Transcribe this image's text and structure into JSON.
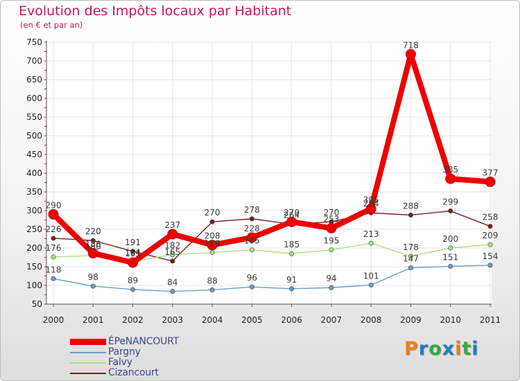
{
  "page": {
    "title": "Evolution des Impôts locaux par Habitant",
    "subtitle": "(en € et par an)"
  },
  "chart_data": {
    "type": "line",
    "title": "Evolution des Impôts locaux par Habitant",
    "subtitle": "(en € et par an)",
    "xlabel": "",
    "ylabel": "",
    "x": [
      "2000",
      "2001",
      "2002",
      "2003",
      "2004",
      "2005",
      "2006",
      "2007",
      "2008",
      "2009",
      "2010",
      "2011"
    ],
    "ylim": [
      50,
      750
    ],
    "yticks": [
      50,
      100,
      150,
      200,
      250,
      300,
      350,
      400,
      450,
      500,
      550,
      600,
      650,
      700,
      750
    ],
    "grid": true,
    "legend_position": "bottom-left",
    "series": [
      {
        "name": "ÉPeNANCOURT",
        "color": "#ee0000",
        "values": [
          290,
          186,
          161,
          237,
          208,
          228,
          270,
          253,
          305,
          718,
          385,
          377
        ],
        "labels": [
          "290",
          "186",
          "161",
          "237",
          "208",
          "228",
          "270",
          "253",
          "305",
          "718",
          "385",
          "377"
        ]
      },
      {
        "name": "Pargny",
        "color": "#6a9cc9",
        "values": [
          118,
          98,
          89,
          84,
          88,
          96,
          91,
          94,
          101,
          147,
          151,
          154
        ],
        "labels": [
          "118",
          "98",
          "89",
          "84",
          "88",
          "96",
          "91",
          "94",
          "101",
          "147",
          "151",
          "154"
        ]
      },
      {
        "name": "Falvy",
        "color": "#a9e27e",
        "values": [
          176,
          180,
          164,
          182,
          188,
          195,
          185,
          195,
          213,
          178,
          200,
          209
        ],
        "labels": [
          "176",
          "180",
          "164",
          "182",
          "188",
          "195",
          "185",
          "195",
          "213",
          "178",
          "200",
          "209"
        ]
      },
      {
        "name": "Cizancourt",
        "color": "#7a1f1f",
        "values": [
          226,
          220,
          191,
          165,
          270,
          278,
          264,
          270,
          294,
          288,
          299,
          258
        ],
        "labels": [
          "226",
          "220",
          "191",
          "165",
          "270",
          "278",
          "264",
          "270",
          "294",
          "288",
          "299",
          "258"
        ]
      }
    ]
  },
  "legend": {
    "items": [
      {
        "label": "ÉPeNANCOURT",
        "color": "#ee0000"
      },
      {
        "label": "Pargny",
        "color": "#6a9cc9"
      },
      {
        "label": "Falvy",
        "color": "#a9e27e"
      },
      {
        "label": "Cizancourt",
        "color": "#7a1f1f"
      }
    ]
  },
  "logo": {
    "letters": [
      "P",
      "r",
      "o",
      "x",
      "i",
      "t",
      "i"
    ],
    "colors": [
      "#ef7d1a",
      "#1f7dc6",
      "#3aa945",
      "#1f7dc6",
      "#ef7d1a",
      "#3aa945",
      "#1f7dc6"
    ]
  }
}
